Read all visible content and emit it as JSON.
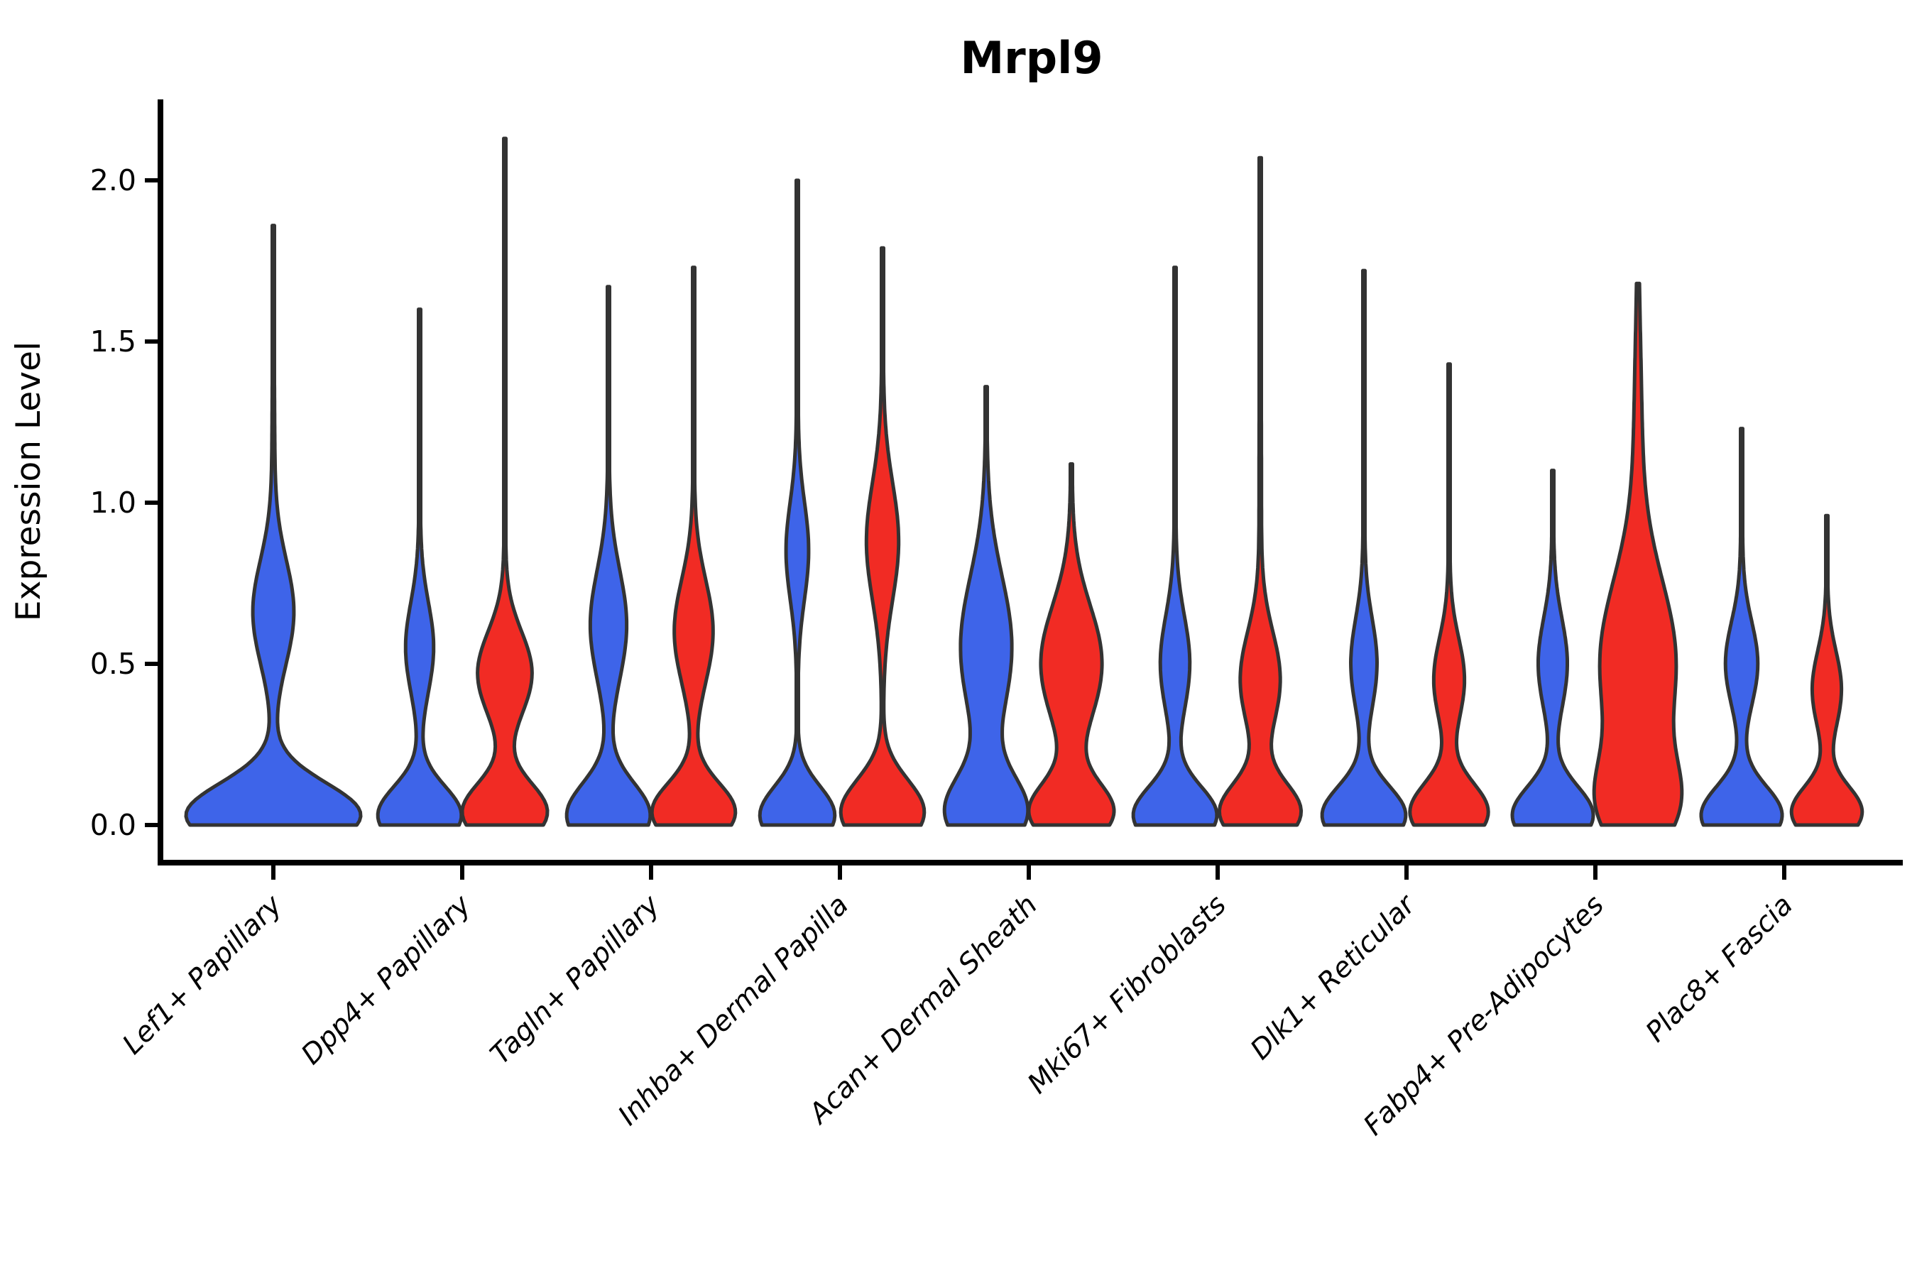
{
  "chart_data": {
    "type": "violin",
    "title": "Mrpl9",
    "xlabel": "",
    "ylabel": "Expression Level",
    "ylim": [
      0,
      2.25
    ],
    "grid": false,
    "legend": "none",
    "ytick_labels": [
      "0.0",
      "0.5",
      "1.0",
      "1.5",
      "2.0"
    ],
    "ytick_values": [
      0.0,
      0.5,
      1.0,
      1.5,
      2.0
    ],
    "categories": [
      "Lef1+ Papillary",
      "Dpp4+ Papillary",
      "Tagln+ Papillary",
      "Inhba+ Dermal Papilla",
      "Acan+ Dermal Sheath",
      "Mki67+ Fibroblasts",
      "Dlk1+ Reticular",
      "Fabp4+ Pre-Adipocytes",
      "Plac8+ Fascia"
    ],
    "colors": {
      "blue_series": "#3E64E9",
      "red_series": "#F12B24",
      "violin_outline": "#333333",
      "axis": "#000000"
    },
    "groups": [
      {
        "category": "Lef1+ Papillary",
        "violins": [
          {
            "color": "blue",
            "position": "center",
            "max_expression": 1.86,
            "rel_width": 2.05,
            "density": [
              [
                0.03,
                0.1,
                1.0
              ],
              [
                0.66,
                0.16,
                0.22
              ],
              [
                0.9,
                0.55,
                0.018
              ]
            ]
          }
        ]
      },
      {
        "category": "Dpp4+ Papillary",
        "violins": [
          {
            "color": "blue",
            "position": "left",
            "max_expression": 1.6,
            "rel_width": 0.98,
            "density": [
              [
                0.03,
                0.09,
                1.0
              ],
              [
                0.55,
                0.14,
                0.32
              ],
              [
                0.8,
                0.5,
                0.02
              ]
            ]
          },
          {
            "color": "red",
            "position": "right",
            "max_expression": 2.13,
            "rel_width": 1.0,
            "density": [
              [
                0.04,
                0.09,
                1.0
              ],
              [
                0.47,
                0.13,
                0.63
              ],
              [
                1.0,
                0.6,
                0.02
              ]
            ]
          }
        ]
      },
      {
        "category": "Tagln+ Papillary",
        "violins": [
          {
            "color": "blue",
            "position": "left",
            "max_expression": 1.67,
            "rel_width": 0.98,
            "density": [
              [
                0.03,
                0.1,
                1.0
              ],
              [
                0.62,
                0.17,
                0.42
              ],
              [
                0.8,
                0.55,
                0.02
              ]
            ]
          },
          {
            "color": "red",
            "position": "right",
            "max_expression": 1.73,
            "rel_width": 0.98,
            "density": [
              [
                0.04,
                0.09,
                1.0
              ],
              [
                0.6,
                0.16,
                0.45
              ],
              [
                0.85,
                0.55,
                0.02
              ]
            ]
          }
        ]
      },
      {
        "category": "Inhba+ Dermal Papilla",
        "violins": [
          {
            "color": "blue",
            "position": "left",
            "max_expression": 2.0,
            "rel_width": 0.88,
            "density": [
              [
                0.03,
                0.09,
                1.0
              ],
              [
                0.85,
                0.15,
                0.28
              ],
              [
                1.0,
                0.6,
                0.025
              ]
            ]
          },
          {
            "color": "red",
            "position": "right",
            "max_expression": 1.79,
            "rel_width": 0.98,
            "density": [
              [
                0.04,
                0.1,
                1.0
              ],
              [
                0.88,
                0.18,
                0.36
              ],
              [
                0.9,
                0.6,
                0.03
              ]
            ]
          }
        ]
      },
      {
        "category": "Acan+ Dermal Sheath",
        "violins": [
          {
            "color": "blue",
            "position": "left",
            "max_expression": 1.36,
            "rel_width": 0.98,
            "density": [
              [
                0.04,
                0.11,
                1.0
              ],
              [
                0.55,
                0.22,
                0.62
              ],
              [
                0.7,
                0.5,
                0.03
              ]
            ]
          },
          {
            "color": "red",
            "position": "right",
            "max_expression": 1.12,
            "rel_width": 1.0,
            "density": [
              [
                0.04,
                0.09,
                1.0
              ],
              [
                0.5,
                0.18,
                0.72
              ],
              [
                0.6,
                0.5,
                0.03
              ]
            ]
          }
        ]
      },
      {
        "category": "Mki67+ Fibroblasts",
        "violins": [
          {
            "color": "blue",
            "position": "left",
            "max_expression": 1.73,
            "rel_width": 0.98,
            "density": [
              [
                0.03,
                0.09,
                1.0
              ],
              [
                0.5,
                0.15,
                0.34
              ],
              [
                0.9,
                0.55,
                0.02
              ]
            ]
          },
          {
            "color": "red",
            "position": "right",
            "max_expression": 2.07,
            "rel_width": 0.96,
            "density": [
              [
                0.04,
                0.09,
                1.0
              ],
              [
                0.45,
                0.15,
                0.48
              ],
              [
                1.0,
                0.6,
                0.03
              ]
            ]
          }
        ]
      },
      {
        "category": "Dlk1+ Reticular",
        "violins": [
          {
            "color": "blue",
            "position": "left",
            "max_expression": 1.72,
            "rel_width": 0.98,
            "density": [
              [
                0.03,
                0.09,
                1.0
              ],
              [
                0.5,
                0.14,
                0.3
              ],
              [
                0.9,
                0.55,
                0.02
              ]
            ]
          },
          {
            "color": "red",
            "position": "right",
            "max_expression": 1.43,
            "rel_width": 0.92,
            "density": [
              [
                0.04,
                0.09,
                1.0
              ],
              [
                0.45,
                0.13,
                0.38
              ],
              [
                0.8,
                0.5,
                0.02
              ]
            ]
          }
        ]
      },
      {
        "category": "Fabp4+ Pre-Adipocytes",
        "violins": [
          {
            "color": "blue",
            "position": "left",
            "max_expression": 1.1,
            "rel_width": 0.95,
            "density": [
              [
                0.03,
                0.09,
                1.0
              ],
              [
                0.5,
                0.14,
                0.34
              ],
              [
                0.6,
                0.45,
                0.025
              ]
            ]
          },
          {
            "color": "red",
            "position": "right",
            "max_expression": 1.68,
            "rel_width": 1.03,
            "density": [
              [
                0.06,
                0.14,
                0.9
              ],
              [
                0.5,
                0.26,
                1.0
              ],
              [
                1.2,
                0.35,
                0.1
              ]
            ]
          }
        ]
      },
      {
        "category": "Plac8+ Fascia",
        "violins": [
          {
            "color": "blue",
            "position": "left",
            "max_expression": 1.23,
            "rel_width": 0.95,
            "density": [
              [
                0.03,
                0.09,
                1.0
              ],
              [
                0.5,
                0.13,
                0.38
              ],
              [
                0.7,
                0.5,
                0.025
              ]
            ]
          },
          {
            "color": "red",
            "position": "right",
            "max_expression": 0.96,
            "rel_width": 0.83,
            "density": [
              [
                0.04,
                0.08,
                1.0
              ],
              [
                0.42,
                0.12,
                0.4
              ],
              [
                0.6,
                0.45,
                0.02
              ]
            ]
          }
        ]
      }
    ]
  }
}
